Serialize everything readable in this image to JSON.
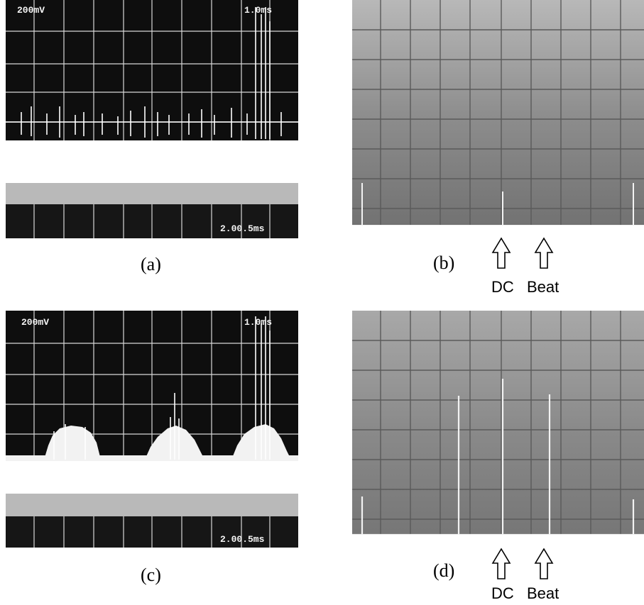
{
  "figure": {
    "panels": [
      {
        "id": "a",
        "caption": "(a)",
        "screen_labels": {
          "top_left": "200mV",
          "top_right": "1.0ms",
          "bottom_right": "2.00.5ms"
        }
      },
      {
        "id": "b",
        "caption": "(b)",
        "markers": [
          "DC",
          "Beat"
        ]
      },
      {
        "id": "c",
        "caption": "(c)",
        "screen_labels": {
          "top_left": "200mV",
          "top_right": "1.0ms",
          "bottom_right": "2.00.5ms"
        }
      },
      {
        "id": "d",
        "caption": "(d)",
        "markers": [
          "DC",
          "Beat"
        ]
      }
    ]
  },
  "colors": {
    "dark_screen": "#0e0e0e",
    "grid_light": "#dcdcdc",
    "gray_screen": "#8f8f8f",
    "trace_white": "#ffffff"
  }
}
